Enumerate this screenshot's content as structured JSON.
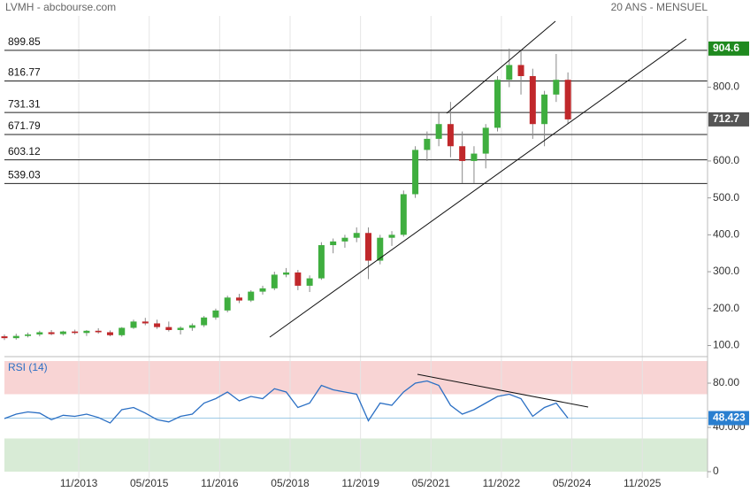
{
  "chart_data": {
    "type": "candlestick",
    "title": "LVMH - abcbourse.com",
    "subtitle": "20 ANS - MENSUEL",
    "x": [
      "04/2012",
      "07/2012",
      "10/2012",
      "01/2013",
      "04/2013",
      "07/2013",
      "10/2013",
      "01/2014",
      "04/2014",
      "07/2014",
      "10/2014",
      "01/2015",
      "04/2015",
      "07/2015",
      "10/2015",
      "01/2016",
      "04/2016",
      "07/2016",
      "10/2016",
      "01/2017",
      "04/2017",
      "07/2017",
      "10/2017",
      "01/2018",
      "04/2018",
      "07/2018",
      "10/2018",
      "01/2019",
      "04/2019",
      "07/2019",
      "10/2019",
      "01/2020",
      "04/2020",
      "07/2020",
      "10/2020",
      "01/2021",
      "04/2021",
      "07/2021",
      "10/2021",
      "01/2022",
      "04/2022",
      "07/2022",
      "10/2022",
      "01/2023",
      "04/2023",
      "07/2023",
      "10/2023",
      "01/2024",
      "04/2024"
    ],
    "ohlc": [
      [
        125,
        130,
        115,
        120
      ],
      [
        120,
        132,
        116,
        126
      ],
      [
        126,
        135,
        122,
        130
      ],
      [
        130,
        140,
        125,
        136
      ],
      [
        136,
        142,
        128,
        131
      ],
      [
        131,
        140,
        127,
        138
      ],
      [
        138,
        143,
        130,
        134
      ],
      [
        134,
        142,
        126,
        140
      ],
      [
        140,
        147,
        132,
        136
      ],
      [
        136,
        141,
        125,
        128
      ],
      [
        128,
        150,
        124,
        148
      ],
      [
        148,
        170,
        145,
        165
      ],
      [
        165,
        175,
        155,
        160
      ],
      [
        160,
        170,
        145,
        150
      ],
      [
        150,
        165,
        138,
        142
      ],
      [
        142,
        152,
        130,
        148
      ],
      [
        148,
        160,
        140,
        155
      ],
      [
        155,
        180,
        150,
        176
      ],
      [
        176,
        200,
        170,
        195
      ],
      [
        195,
        235,
        190,
        230
      ],
      [
        230,
        240,
        215,
        222
      ],
      [
        222,
        250,
        218,
        246
      ],
      [
        246,
        262,
        238,
        255
      ],
      [
        255,
        300,
        250,
        292
      ],
      [
        292,
        310,
        285,
        298
      ],
      [
        298,
        305,
        250,
        262
      ],
      [
        262,
        290,
        245,
        282
      ],
      [
        282,
        380,
        278,
        372
      ],
      [
        372,
        390,
        350,
        382
      ],
      [
        382,
        400,
        365,
        392
      ],
      [
        392,
        420,
        380,
        405
      ],
      [
        405,
        420,
        280,
        330
      ],
      [
        330,
        400,
        320,
        392
      ],
      [
        392,
        410,
        370,
        400
      ],
      [
        400,
        520,
        395,
        510
      ],
      [
        510,
        640,
        500,
        630
      ],
      [
        630,
        680,
        600,
        660
      ],
      [
        660,
        730,
        640,
        700
      ],
      [
        700,
        760,
        610,
        640
      ],
      [
        640,
        680,
        540,
        600
      ],
      [
        600,
        640,
        540,
        620
      ],
      [
        620,
        700,
        580,
        690
      ],
      [
        690,
        830,
        680,
        820
      ],
      [
        820,
        904.6,
        800,
        860
      ],
      [
        860,
        900,
        780,
        830
      ],
      [
        830,
        850,
        660,
        700
      ],
      [
        700,
        790,
        640,
        780
      ],
      [
        780,
        890,
        760,
        820
      ],
      [
        820,
        840,
        700,
        712.7
      ]
    ],
    "up_color": "#3fae3f",
    "down_color": "#c0282b",
    "xlim": [
      "04/2012",
      "03/2027"
    ],
    "xticks": [
      "11/2013",
      "05/2015",
      "11/2016",
      "05/2018",
      "11/2019",
      "05/2021",
      "11/2022",
      "05/2024",
      "11/2025"
    ],
    "ylim": [
      70,
      993
    ],
    "yticks": [
      {
        "value": 100,
        "label": "100.0"
      },
      {
        "value": 200,
        "label": "200.0"
      },
      {
        "value": 300,
        "label": "300.0"
      },
      {
        "value": 400,
        "label": "400.0"
      },
      {
        "value": 500,
        "label": "500.0"
      },
      {
        "value": 600,
        "label": "600.0"
      },
      {
        "value": 800,
        "label": "800.0"
      }
    ],
    "levels": [
      899.85,
      816.77,
      731.31,
      671.79,
      603.12,
      539.03
    ],
    "rsi": {
      "name": "RSI (14)",
      "color": "#2a6fc4",
      "values": [
        48,
        52,
        54,
        53,
        47,
        51,
        50,
        52,
        49,
        44,
        56,
        58,
        53,
        47,
        45,
        50,
        52,
        62,
        66,
        72,
        64,
        68,
        66,
        75,
        72,
        58,
        62,
        78,
        74,
        72,
        70,
        46,
        62,
        60,
        72,
        80,
        82,
        78,
        60,
        52,
        56,
        62,
        68,
        70,
        66,
        50,
        58,
        62,
        48.423
      ],
      "ylim": [
        0,
        100
      ],
      "yticks": [
        0,
        {
          "value": 40,
          "label": "40.000"
        },
        {
          "value": 80,
          "label": "80.00"
        }
      ],
      "zones": [
        {
          "from": 70,
          "to": 100,
          "color": "#f8d4d4"
        },
        {
          "from": 0,
          "to": 30,
          "color": "#d8ebd6"
        }
      ]
    }
  }
}
